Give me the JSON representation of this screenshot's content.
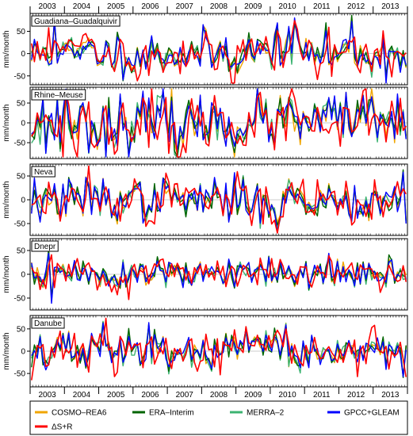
{
  "figure": {
    "ylabel": "mm/month",
    "years": [
      "2003",
      "2004",
      "2005",
      "2006",
      "2007",
      "2008",
      "2009",
      "2010",
      "2011",
      "2012",
      "2013"
    ]
  },
  "legend": [
    {
      "key": "cosmo",
      "label": "COSMO–REA6",
      "color": "#f0a500"
    },
    {
      "key": "era",
      "label": "ERA–Interim",
      "color": "#006400"
    },
    {
      "key": "merra",
      "label": "MERRA–2",
      "color": "#3cb371"
    },
    {
      "key": "gpcc",
      "label": "GPCC+GLEAM",
      "color": "#0000ff"
    },
    {
      "key": "dsr",
      "label": "ΔS+R",
      "color": "#ff0000"
    }
  ],
  "chart_data": [
    {
      "type": "line",
      "title": "Guadiana–Guadalquivir",
      "ylabel": "mm/month",
      "ylim": [
        -70,
        90
      ],
      "yticks": [
        -50,
        0,
        50
      ],
      "x_range": [
        "2003-01",
        "2013-12"
      ],
      "amplitude": 28,
      "seed": 11,
      "events": [
        {
          "month": 8,
          "value": 75
        },
        {
          "month": 86,
          "value": 70
        },
        {
          "month": 92,
          "value": 75
        },
        {
          "month": 112,
          "value": 70
        }
      ],
      "series": [
        {
          "name": "COSMO–REA6"
        },
        {
          "name": "ERA–Interim"
        },
        {
          "name": "MERRA–2"
        },
        {
          "name": "GPCC+GLEAM"
        },
        {
          "name": "ΔS+R"
        }
      ]
    },
    {
      "type": "line",
      "title": "Rhine–Meuse",
      "ylabel": "mm/month",
      "ylim": [
        -90,
        90
      ],
      "yticks": [
        -50,
        0,
        50
      ],
      "x_range": [
        "2003-01",
        "2013-12"
      ],
      "amplitude": 42,
      "seed": 23,
      "events": [
        {
          "month": 12,
          "value": 75
        },
        {
          "month": 50,
          "value": -70
        },
        {
          "month": 110,
          "value": 75
        }
      ],
      "series": [
        {
          "name": "COSMO–REA6"
        },
        {
          "name": "ERA–Interim"
        },
        {
          "name": "MERRA–2"
        },
        {
          "name": "GPCC+GLEAM"
        },
        {
          "name": "ΔS+R"
        }
      ]
    },
    {
      "type": "line",
      "title": "Neva",
      "ylabel": "mm/month",
      "ylim": [
        -75,
        75
      ],
      "yticks": [
        -50,
        0,
        50
      ],
      "x_range": [
        "2003-01",
        "2013-12"
      ],
      "amplitude": 26,
      "seed": 37,
      "events": [
        {
          "month": 86,
          "value": -60
        },
        {
          "month": 130,
          "value": 60
        }
      ],
      "series": [
        {
          "name": "COSMO–REA6"
        },
        {
          "name": "ERA–Interim"
        },
        {
          "name": "MERRA–2"
        },
        {
          "name": "GPCC+GLEAM"
        },
        {
          "name": "ΔS+R"
        }
      ]
    },
    {
      "type": "line",
      "title": "Dnepr",
      "ylabel": "mm/month",
      "ylim": [
        -75,
        75
      ],
      "yticks": [
        -50,
        0,
        50
      ],
      "x_range": [
        "2003-01",
        "2013-12"
      ],
      "amplitude": 20,
      "seed": 51,
      "events": [
        {
          "month": 6,
          "value": 50
        },
        {
          "month": 7,
          "value": -55
        }
      ],
      "series": [
        {
          "name": "COSMO–REA6"
        },
        {
          "name": "ERA–Interim"
        },
        {
          "name": "MERRA–2"
        },
        {
          "name": "GPCC+GLEAM"
        },
        {
          "name": "ΔS+R"
        }
      ]
    },
    {
      "type": "line",
      "title": "Danube",
      "ylabel": "mm/month",
      "ylim": [
        -80,
        80
      ],
      "yticks": [
        -50,
        0,
        50
      ],
      "x_range": [
        "2003-01",
        "2013-12"
      ],
      "amplitude": 25,
      "seed": 67,
      "events": [
        {
          "month": 25,
          "value": 70
        },
        {
          "month": 41,
          "value": 60
        },
        {
          "month": 89,
          "value": 60
        }
      ],
      "series": [
        {
          "name": "COSMO–REA6"
        },
        {
          "name": "ERA–Interim"
        },
        {
          "name": "MERRA–2"
        },
        {
          "name": "GPCC+GLEAM"
        },
        {
          "name": "ΔS+R"
        }
      ]
    }
  ]
}
